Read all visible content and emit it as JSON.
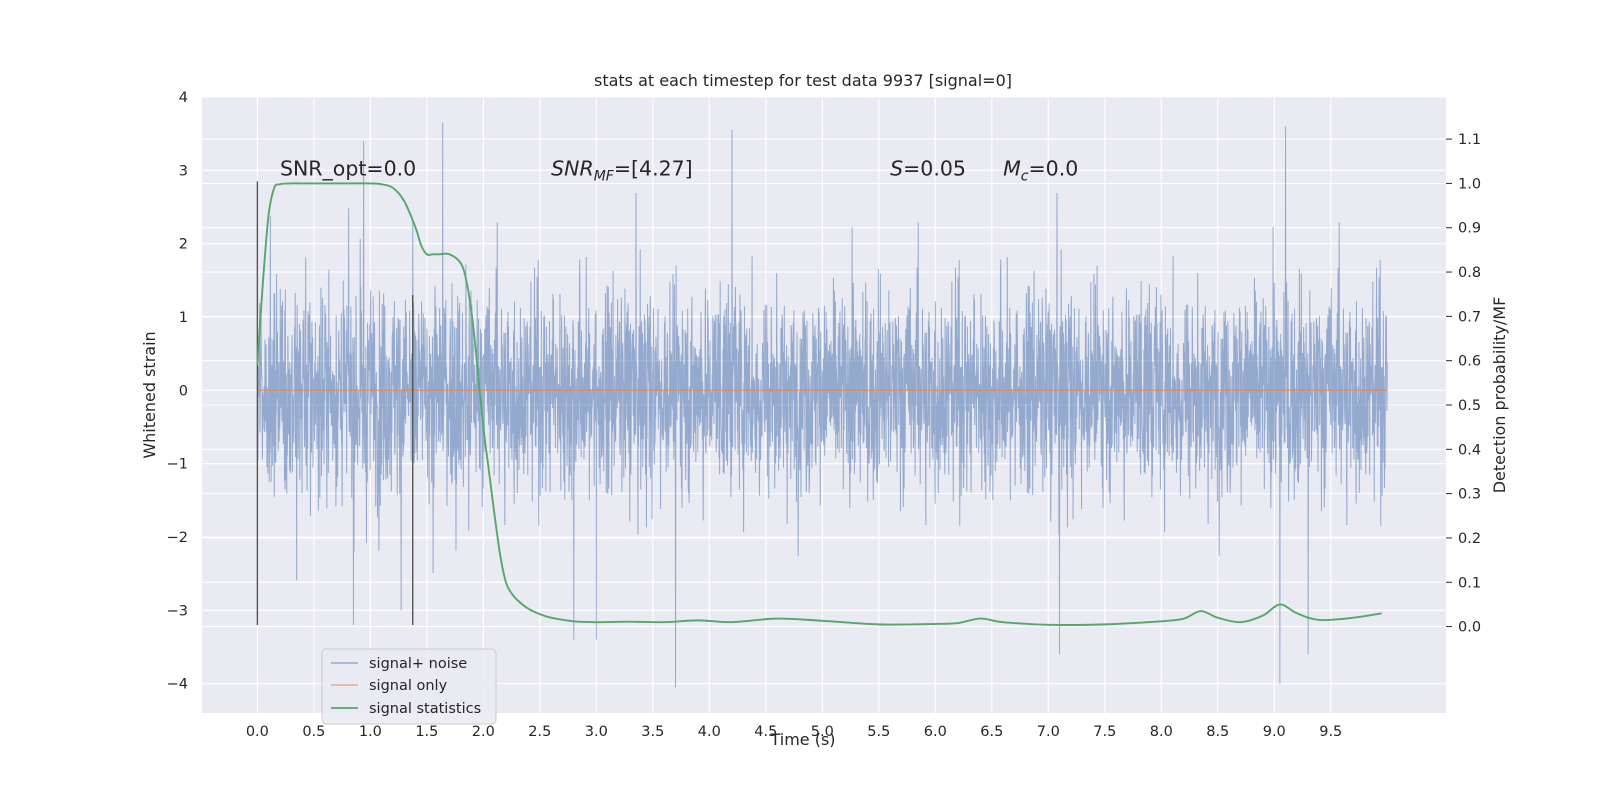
{
  "chart_data": {
    "type": "line",
    "title": "stats at each timestep for test data 9937 [signal=0]",
    "xlabel": "Time (s)",
    "ylabel": "Whitened strain",
    "y2label": "Detection probability/MF",
    "xlim": [
      -0.49,
      10.52
    ],
    "ylim": [
      -4.4,
      4.0
    ],
    "y2lim": [
      -0.195,
      1.195
    ],
    "xticks": [
      0.0,
      0.5,
      1.0,
      1.5,
      2.0,
      2.5,
      3.0,
      3.5,
      4.0,
      4.5,
      5.0,
      5.5,
      6.0,
      6.5,
      7.0,
      7.5,
      8.0,
      8.5,
      9.0,
      9.5
    ],
    "xtick_labels": [
      "0.0",
      "0.5",
      "1.0",
      "1.5",
      "2.0",
      "2.5",
      "3.0",
      "3.5",
      "4.0",
      "4.5",
      "5.0",
      "5.5",
      "6.0",
      "6.5",
      "7.0",
      "7.5",
      "8.0",
      "8.5",
      "9.0",
      "9.5"
    ],
    "yticks": [
      -4,
      -3,
      -2,
      -1,
      0,
      1,
      2,
      3,
      4
    ],
    "ytick_labels": [
      "−4",
      "−3",
      "−2",
      "−1",
      "0",
      "1",
      "2",
      "3",
      "4"
    ],
    "y2ticks": [
      0.0,
      0.1,
      0.2,
      0.3,
      0.4,
      0.5,
      0.6,
      0.7,
      0.8,
      0.9,
      1.0,
      1.1
    ],
    "y2tick_labels": [
      "0.0",
      "0.1",
      "0.2",
      "0.3",
      "0.4",
      "0.5",
      "0.6",
      "0.7",
      "0.8",
      "0.9",
      "1.0",
      "1.1"
    ],
    "grid": true,
    "legend_position": "lower-left",
    "colors": {
      "background": "#eaeaf2",
      "grid": "#ffffff",
      "noise": "#4c72b0",
      "signal": "#dd8452",
      "statistics": "#55a868",
      "marker": "#555555"
    },
    "series": [
      {
        "name": "signal+ noise",
        "axis": "left",
        "description": "noise",
        "x_range": [
          0.0,
          10.0
        ],
        "typical_range": [
          -1.5,
          1.5
        ],
        "extrema": [
          {
            "x": 0.85,
            "y": -3.2
          },
          {
            "x": 0.94,
            "y": 3.4
          },
          {
            "x": 1.64,
            "y": 3.65
          },
          {
            "x": 2.8,
            "y": -3.4
          },
          {
            "x": 3.0,
            "y": -3.4
          },
          {
            "x": 3.7,
            "y": -4.05
          },
          {
            "x": 4.2,
            "y": 3.55
          },
          {
            "x": 7.1,
            "y": -3.6
          },
          {
            "x": 9.1,
            "y": 3.6
          },
          {
            "x": 9.05,
            "y": -4.0
          },
          {
            "x": 9.3,
            "y": -3.6
          }
        ]
      },
      {
        "name": "signal only",
        "axis": "left",
        "x": [
          0.0,
          10.0
        ],
        "y": [
          0.0,
          0.0
        ]
      },
      {
        "name": "signal statistics",
        "axis": "right",
        "x": [
          0.0,
          0.05,
          0.1,
          0.15,
          0.2,
          0.3,
          0.4,
          0.6,
          0.8,
          1.0,
          1.1,
          1.2,
          1.3,
          1.4,
          1.45,
          1.5,
          1.55,
          1.6,
          1.7,
          1.8,
          1.85,
          1.9,
          1.95,
          2.0,
          2.05,
          2.1,
          2.15,
          2.2,
          2.25,
          2.3,
          2.4,
          2.5,
          2.6,
          2.8,
          3.0,
          3.3,
          3.6,
          3.9,
          4.2,
          4.6,
          5.0,
          5.5,
          6.0,
          6.2,
          6.4,
          6.6,
          7.0,
          7.5,
          8.0,
          8.2,
          8.35,
          8.5,
          8.7,
          8.9,
          9.05,
          9.2,
          9.4,
          9.7,
          9.95
        ],
        "y": [
          0.59,
          0.78,
          0.93,
          0.99,
          0.998,
          1.0,
          1.0,
          1.0,
          1.0,
          1.0,
          0.998,
          0.99,
          0.96,
          0.9,
          0.86,
          0.84,
          0.84,
          0.84,
          0.84,
          0.82,
          0.78,
          0.7,
          0.58,
          0.45,
          0.35,
          0.25,
          0.16,
          0.1,
          0.075,
          0.06,
          0.04,
          0.028,
          0.02,
          0.012,
          0.01,
          0.011,
          0.01,
          0.014,
          0.01,
          0.018,
          0.013,
          0.005,
          0.006,
          0.008,
          0.018,
          0.01,
          0.004,
          0.005,
          0.012,
          0.018,
          0.035,
          0.02,
          0.01,
          0.025,
          0.05,
          0.03,
          0.015,
          0.02,
          0.03
        ]
      }
    ],
    "markers": [
      {
        "x": 0.0,
        "y": [
          -3.2,
          2.85
        ]
      },
      {
        "x": 1.375,
        "y": [
          -3.2,
          1.3
        ]
      }
    ],
    "annotations": [
      {
        "id": "snr-opt",
        "x": 0.2,
        "y": 2.93,
        "parts": [
          {
            "t": "SNR_opt=0.0"
          }
        ]
      },
      {
        "id": "snr-mf",
        "x": 2.6,
        "y": 2.93,
        "parts": [
          {
            "t": "SNR",
            "i": true
          },
          {
            "t": "MF",
            "i": true,
            "sub": true
          },
          {
            "t": "=[4.27]"
          }
        ]
      },
      {
        "id": "s-value",
        "x": 5.6,
        "y": 2.93,
        "parts": [
          {
            "t": "S",
            "i": true
          },
          {
            "t": "=0.05"
          }
        ]
      },
      {
        "id": "mc-value",
        "x": 6.6,
        "y": 2.93,
        "parts": [
          {
            "t": "M",
            "i": true
          },
          {
            "t": "c",
            "i": true,
            "sub": true
          },
          {
            "t": "=0.0"
          }
        ]
      }
    ]
  }
}
